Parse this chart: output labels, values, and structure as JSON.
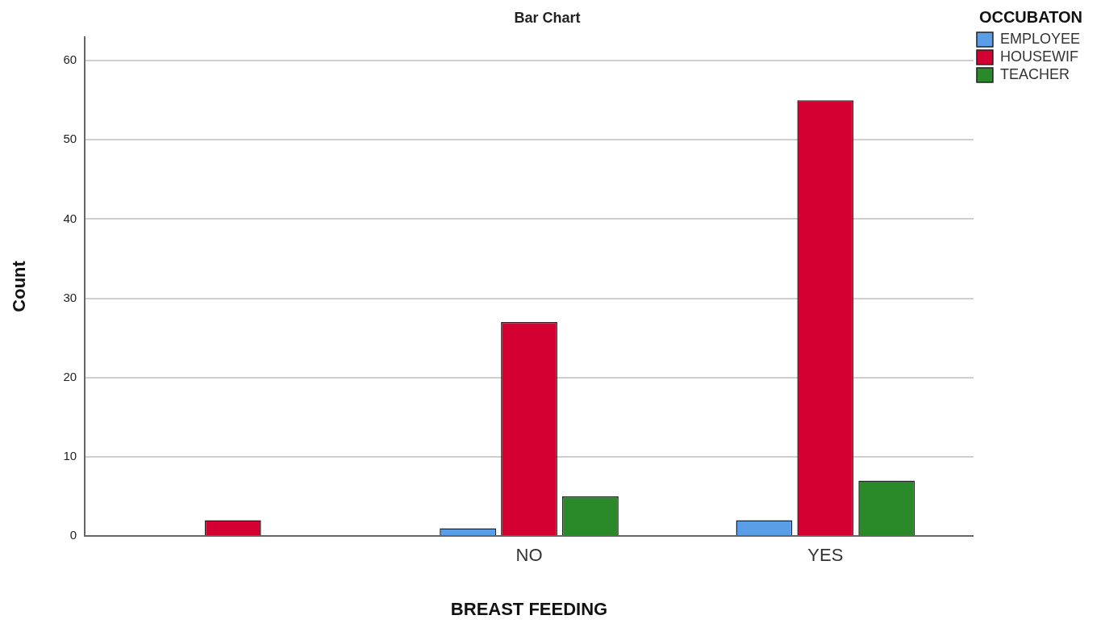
{
  "chart_data": {
    "type": "bar",
    "title": "Bar Chart",
    "xlabel": "BREAST FEEDING",
    "ylabel": "Count",
    "legend_title": "OCCUBATON",
    "categories": [
      null,
      "NO",
      "YES"
    ],
    "series": [
      {
        "name": "EMPLOYEE",
        "color": "#5b9ee8",
        "values": [
          null,
          1,
          2
        ]
      },
      {
        "name": "HOUSEWIF",
        "color": "#d50032",
        "values": [
          2,
          27,
          55
        ]
      },
      {
        "name": "TEACHER",
        "color": "#2a8a2a",
        "values": [
          null,
          5,
          7
        ]
      }
    ],
    "ylim": [
      0,
      63
    ],
    "yticks": [
      0,
      10,
      20,
      30,
      40,
      50,
      60
    ],
    "grid": "y",
    "legend": "top right"
  }
}
